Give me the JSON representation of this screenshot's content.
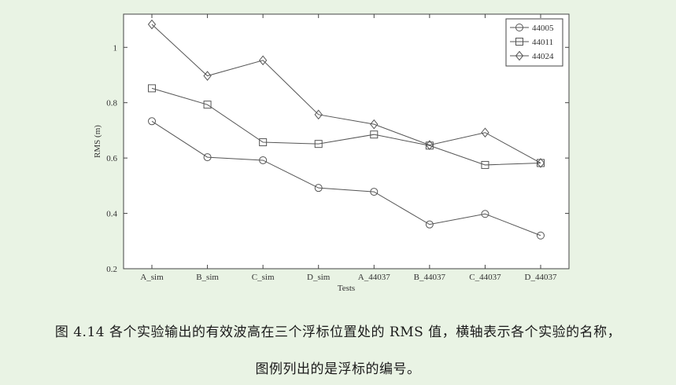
{
  "chart_data": {
    "type": "line",
    "title": "",
    "xlabel": "Tests",
    "ylabel": "RMS (m)",
    "categories": [
      "A_sim",
      "B_sim",
      "C_sim",
      "D_sim",
      "A_44037",
      "B_44037",
      "C_44037",
      "D_44037"
    ],
    "ylim": [
      0.2,
      1.12
    ],
    "yticks": [
      0.2,
      0.4,
      0.6,
      0.8,
      1
    ],
    "ytick_labels": [
      "0.2",
      "0.4",
      "0.6",
      "0.8",
      "1"
    ],
    "grid": false,
    "legend_position": "top-right",
    "line_color": "#555555",
    "series": [
      {
        "name": "44005",
        "marker": "circle",
        "values": [
          0.733,
          0.603,
          0.592,
          0.492,
          0.478,
          0.36,
          0.398,
          0.32
        ]
      },
      {
        "name": "44011",
        "marker": "square",
        "values": [
          0.852,
          0.793,
          0.657,
          0.651,
          0.685,
          0.645,
          0.575,
          0.582
        ]
      },
      {
        "name": "44024",
        "marker": "diamond",
        "values": [
          1.083,
          0.897,
          0.953,
          0.757,
          0.722,
          0.647,
          0.692,
          0.582
        ]
      }
    ]
  },
  "caption": {
    "line1": "图 4.14  各个实验输出的有效波高在三个浮标位置处的 RMS 值，横轴表示各个实验的名称，",
    "line2": "图例列出的是浮标的编号。"
  }
}
